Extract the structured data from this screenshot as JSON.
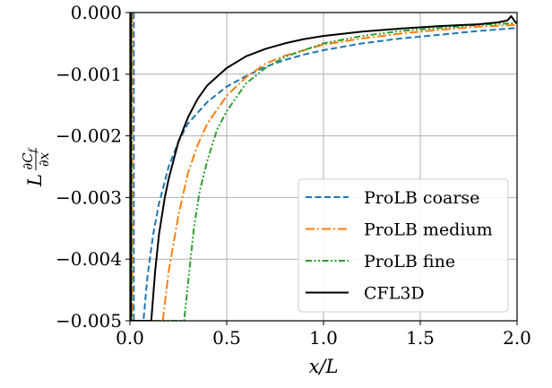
{
  "chart_data": {
    "type": "line",
    "title": "",
    "xlabel": "x/L",
    "ylabel": "L ∂C_f/∂x",
    "ylabel_parts": {
      "prefix": "L",
      "numerator": "∂C",
      "numerator_sub": "f",
      "denominator": "∂x"
    },
    "xlim": [
      0.0,
      2.0
    ],
    "ylim": [
      -0.005,
      0.0
    ],
    "xticks": [
      0.0,
      0.5,
      1.0,
      1.5,
      2.0
    ],
    "xtick_labels": [
      "0.0",
      "0.5",
      "1.0",
      "1.5",
      "2.0"
    ],
    "yticks": [
      -0.005,
      -0.004,
      -0.003,
      -0.002,
      -0.001,
      0.0
    ],
    "ytick_labels": [
      "−0.005",
      "−0.004",
      "−0.003",
      "−0.002",
      "−0.001",
      "0.000"
    ],
    "grid": true,
    "legend_position": "lower-right",
    "series": [
      {
        "name": "ProLB coarse",
        "color": "#1f77b4",
        "dash": "dashed",
        "x": [
          0.02,
          0.02,
          0.07,
          0.09,
          0.12,
          0.15,
          0.2,
          0.25,
          0.3,
          0.4,
          0.5,
          0.6,
          0.7,
          0.8,
          0.9,
          1.0,
          1.2,
          1.4,
          1.6,
          1.8,
          2.0
        ],
        "y": [
          0.0,
          -0.005,
          -0.005,
          -0.0043,
          -0.0036,
          -0.0031,
          -0.0025,
          -0.0021,
          -0.0018,
          -0.00145,
          -0.0012,
          -0.00103,
          -0.00088,
          -0.00077,
          -0.00068,
          -0.00061,
          -0.0005,
          -0.00042,
          -0.00036,
          -0.0003,
          -0.00025
        ]
      },
      {
        "name": "ProLB medium",
        "color": "#ff7f0e",
        "dash": "dashdot",
        "x": [
          0.012,
          0.012,
          0.17,
          0.2,
          0.25,
          0.3,
          0.35,
          0.4,
          0.5,
          0.6,
          0.7,
          0.8,
          1.0,
          1.2,
          1.4,
          1.6,
          1.8,
          2.0
        ],
        "y": [
          0.0,
          -0.005,
          -0.005,
          -0.0042,
          -0.0033,
          -0.0026,
          -0.00215,
          -0.0018,
          -0.00135,
          -0.00105,
          -0.00083,
          -0.0007,
          -0.00052,
          -0.00042,
          -0.00034,
          -0.00028,
          -0.00023,
          -0.0002
        ]
      },
      {
        "name": "ProLB fine",
        "color": "#2ca02c",
        "dash": "dashdotdot",
        "x": [
          0.008,
          0.008,
          0.28,
          0.3,
          0.33,
          0.36,
          0.4,
          0.45,
          0.5,
          0.6,
          0.7,
          0.8,
          1.0,
          1.2,
          1.4,
          1.6,
          1.8,
          2.0
        ],
        "y": [
          0.0,
          -0.005,
          -0.005,
          -0.0044,
          -0.0035,
          -0.0029,
          -0.0024,
          -0.0019,
          -0.0016,
          -0.00115,
          -0.0009,
          -0.00072,
          -0.0005,
          -0.00038,
          -0.0003,
          -0.00025,
          -0.0002,
          -0.00017
        ]
      },
      {
        "name": "CFL3D",
        "color": "#000000",
        "dash": "solid",
        "x": [
          0.005,
          0.005,
          0.11,
          0.13,
          0.15,
          0.18,
          0.2,
          0.25,
          0.3,
          0.35,
          0.4,
          0.5,
          0.6,
          0.7,
          0.8,
          0.9,
          1.0,
          1.2,
          1.4,
          1.6,
          1.8,
          1.9,
          1.95,
          1.97,
          1.99,
          2.0
        ],
        "y": [
          0.0,
          -0.005,
          -0.005,
          -0.0042,
          -0.0036,
          -0.003,
          -0.0027,
          -0.0021,
          -0.0017,
          -0.0014,
          -0.00118,
          -0.0009,
          -0.00071,
          -0.00059,
          -0.0005,
          -0.00043,
          -0.00038,
          -0.00031,
          -0.00026,
          -0.00022,
          -0.00019,
          -0.00016,
          -0.00013,
          -6e-05,
          -0.00015,
          -0.00017
        ]
      }
    ]
  }
}
